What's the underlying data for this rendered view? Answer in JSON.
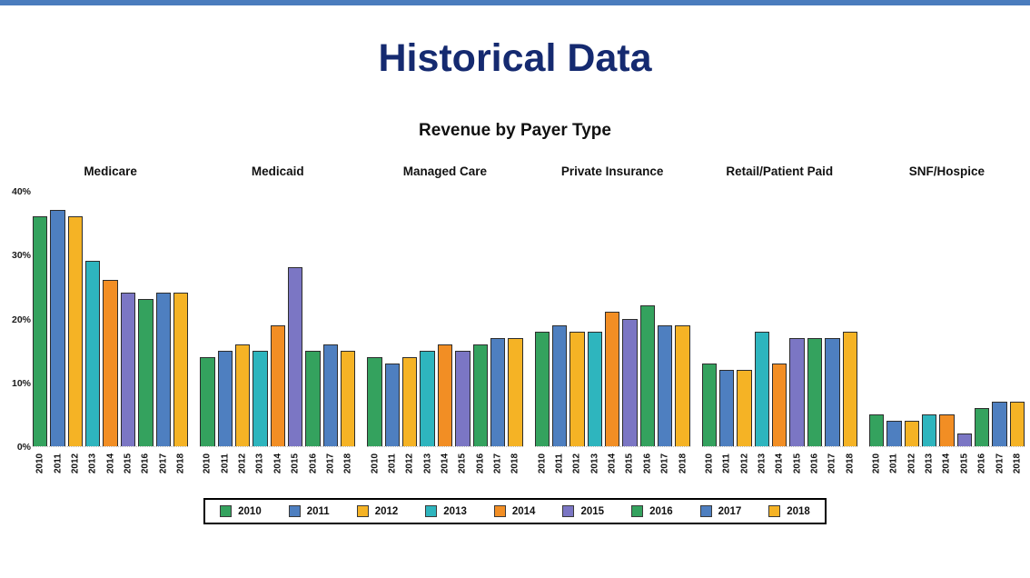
{
  "page": {
    "banner_color": "#4a7cbd",
    "title": "Historical Data",
    "title_color": "#152a70"
  },
  "chart_data": {
    "type": "bar",
    "title": "Revenue by Payer Type",
    "xlabel": "",
    "ylabel": "",
    "ylim": [
      0,
      40
    ],
    "grid": false,
    "legend_position": "bottom",
    "unit": "%",
    "x": [
      "2010",
      "2011",
      "2012",
      "2013",
      "2014",
      "2015",
      "2016",
      "2017",
      "2018"
    ],
    "year_colors": [
      "#34a25e",
      "#4e7fc0",
      "#f5b325",
      "#2eb5be",
      "#f28e24",
      "#7b76c4",
      "#34a25e",
      "#4e7fc0",
      "#f5b325"
    ],
    "bar_border_color": "#2d2d2d",
    "yticks": [
      {
        "value": 0,
        "label": "0%"
      },
      {
        "value": 10,
        "label": "10%"
      },
      {
        "value": 20,
        "label": "20%"
      },
      {
        "value": 30,
        "label": "30%"
      },
      {
        "value": 40,
        "label": "40%"
      }
    ],
    "groups": [
      {
        "label": "Medicare",
        "values": [
          36,
          37,
          36,
          29,
          26,
          24,
          23,
          24,
          24
        ]
      },
      {
        "label": "Medicaid",
        "values": [
          14,
          15,
          16,
          15,
          19,
          28,
          15,
          16,
          15
        ]
      },
      {
        "label": "Managed Care",
        "values": [
          14,
          13,
          14,
          15,
          16,
          15,
          16,
          17,
          17
        ]
      },
      {
        "label": "Private Insurance",
        "values": [
          18,
          19,
          18,
          18,
          21,
          20,
          22,
          19,
          19
        ]
      },
      {
        "label": "Retail/Patient Paid",
        "values": [
          13,
          12,
          12,
          18,
          13,
          17,
          17,
          17,
          18
        ]
      },
      {
        "label": "SNF/Hospice",
        "values": [
          5,
          4,
          4,
          5,
          5,
          2,
          6,
          7,
          7
        ]
      }
    ],
    "legend_entries": [
      "2010",
      "2011",
      "2012",
      "2013",
      "2014",
      "2015",
      "2016",
      "2017",
      "2018"
    ]
  }
}
